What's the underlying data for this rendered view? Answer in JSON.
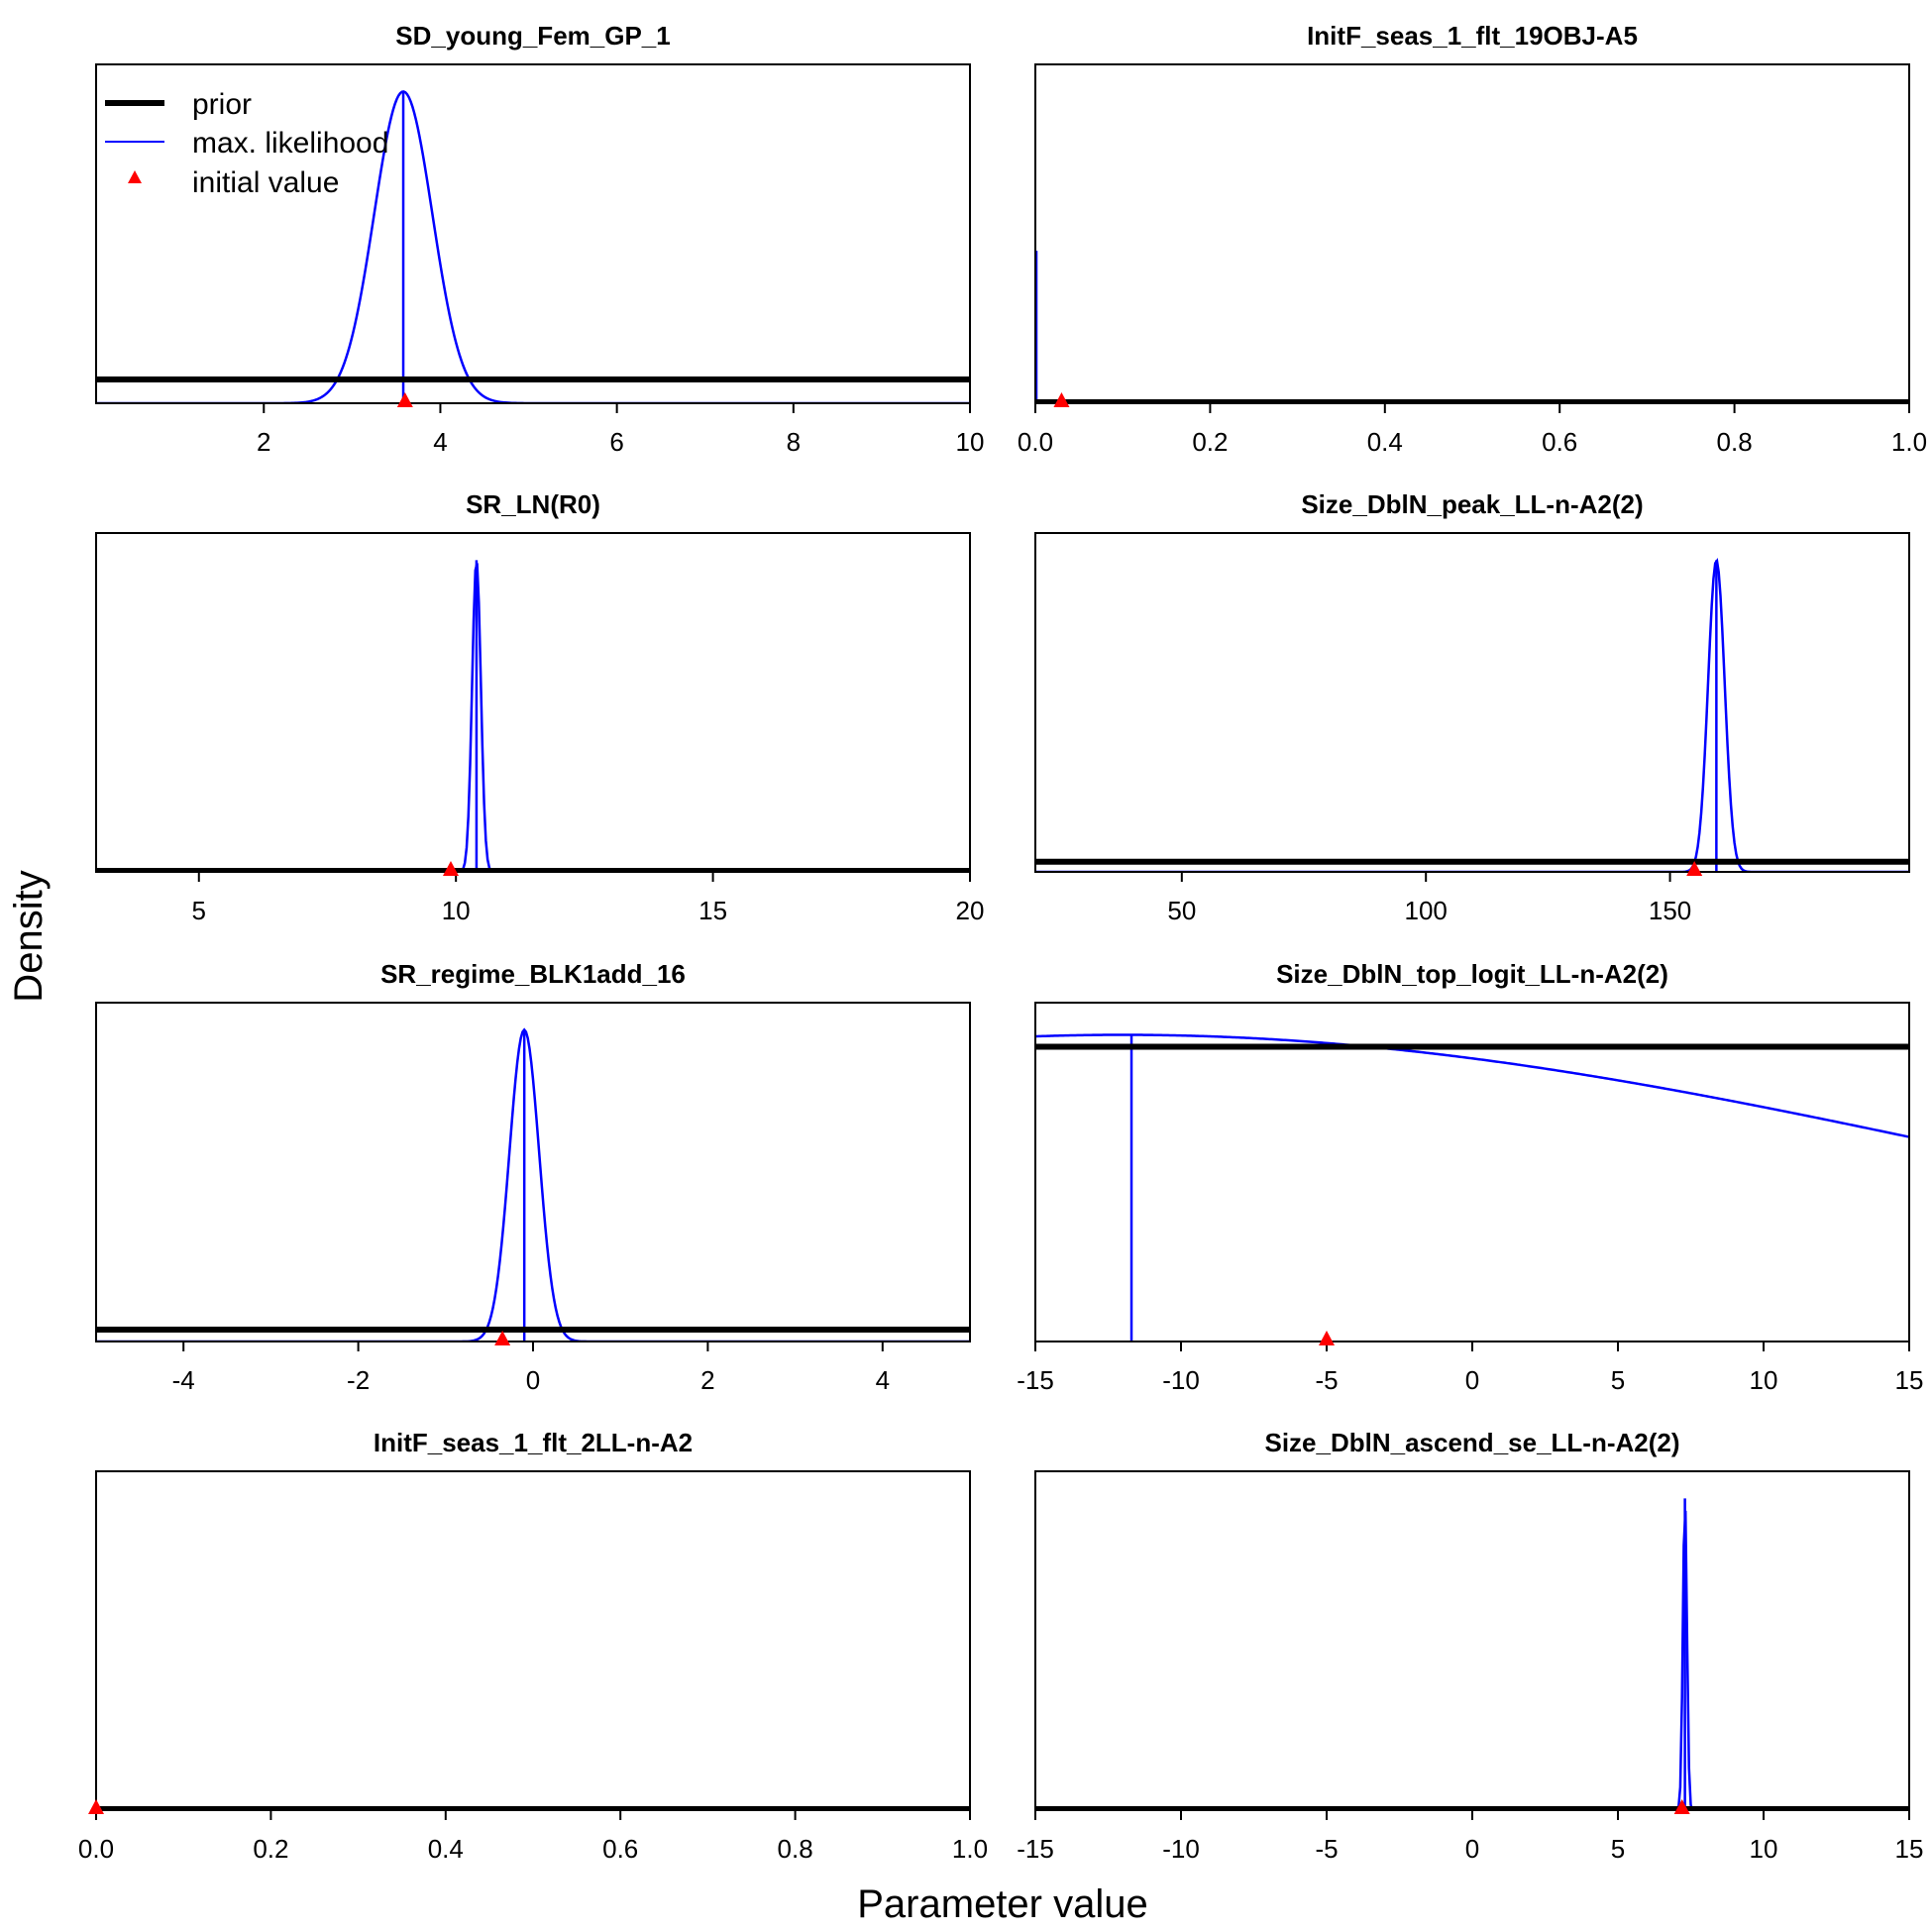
{
  "figure": {
    "ylabel": "Density",
    "xlabel": "Parameter value",
    "colors": {
      "prior": "#000000",
      "mle": "#0000ff",
      "initial": "#ff0000"
    }
  },
  "legend": {
    "placement": "top-left of first panel",
    "items": [
      {
        "label": "prior",
        "style": "thick-black-line"
      },
      {
        "label": "max. likelihood",
        "style": "thin-blue-line"
      },
      {
        "label": "initial value",
        "style": "red-triangle"
      }
    ]
  },
  "chart_data": [
    {
      "type": "line",
      "title": "SD_young_Fem_GP_1",
      "xlim": [
        0.1,
        10
      ],
      "xticks": [
        2,
        4,
        6,
        8,
        10
      ],
      "tick_labels": [
        "2",
        "4",
        "6",
        "8",
        "10"
      ],
      "prior": {
        "kind": "uniform",
        "level": 0.07
      },
      "mle": {
        "kind": "normal",
        "mean": 3.58,
        "sd": 0.33
      },
      "mle_estimate": 3.58,
      "initial_value": 3.6
    },
    {
      "type": "line",
      "title": "InitF_seas_1_flt_19OBJ-A5",
      "xlim": [
        0,
        1
      ],
      "xticks": [
        0,
        0.2,
        0.4,
        0.6,
        0.8,
        1.0
      ],
      "tick_labels": [
        "0.0",
        "0.2",
        "0.4",
        "0.6",
        "0.8",
        "1.0"
      ],
      "prior": {
        "kind": "uniform",
        "level": 0.0
      },
      "mle": {
        "kind": "spike",
        "at": 0.0,
        "height": 0.45
      },
      "mle_estimate": 0.0,
      "initial_value": 0.03
    },
    {
      "type": "line",
      "title": "SR_LN(R0)",
      "xlim": [
        3,
        20
      ],
      "xticks": [
        5,
        10,
        15,
        20
      ],
      "tick_labels": [
        "5",
        "10",
        "15",
        "20"
      ],
      "prior": {
        "kind": "uniform",
        "level": 0.0
      },
      "mle": {
        "kind": "normal",
        "mean": 10.4,
        "sd": 0.085
      },
      "mle_estimate": 10.4,
      "initial_value": 9.9
    },
    {
      "type": "line",
      "title": "Size_DblN_peak_LL-n-A2(2)",
      "xlim": [
        20,
        199
      ],
      "xticks": [
        50,
        100,
        150
      ],
      "tick_labels": [
        "50",
        "100",
        "150"
      ],
      "prior": {
        "kind": "uniform",
        "level": 0.03
      },
      "mle": {
        "kind": "normal",
        "mean": 159.5,
        "sd": 1.7
      },
      "mle_estimate": 159.5,
      "initial_value": 155
    },
    {
      "type": "line",
      "title": "SR_regime_BLK1add_16",
      "xlim": [
        -5,
        5
      ],
      "xticks": [
        -4,
        -2,
        0,
        2,
        4
      ],
      "tick_labels": [
        "-4",
        "-2",
        "0",
        "2",
        "4"
      ],
      "prior": {
        "kind": "uniform",
        "level": 0.035
      },
      "mle": {
        "kind": "normal",
        "mean": -0.1,
        "sd": 0.17
      },
      "mle_estimate": -0.1,
      "initial_value": -0.35
    },
    {
      "type": "line",
      "title": "Size_DblN_top_logit_LL-n-A2(2)",
      "xlim": [
        -15,
        15
      ],
      "xticks": [
        -15,
        -10,
        -5,
        0,
        5,
        10,
        15
      ],
      "tick_labels": [
        "-15",
        "-10",
        "-5",
        "0",
        "5",
        "10",
        "15"
      ],
      "prior": {
        "kind": "uniform",
        "level": 0.87
      },
      "mle": {
        "kind": "normal",
        "mean": -12,
        "sd": 30,
        "peak_level": 0.905
      },
      "mle_estimate": -11.7,
      "initial_value": -5
    },
    {
      "type": "line",
      "title": "InitF_seas_1_flt_2LL-n-A2",
      "xlim": [
        0,
        1
      ],
      "xticks": [
        0,
        0.2,
        0.4,
        0.6,
        0.8,
        1.0
      ],
      "tick_labels": [
        "0.0",
        "0.2",
        "0.4",
        "0.6",
        "0.8",
        "1.0"
      ],
      "prior": {
        "kind": "uniform",
        "level": 0.0
      },
      "mle": {
        "kind": "none"
      },
      "mle_estimate": null,
      "initial_value": 0.0
    },
    {
      "type": "line",
      "title": "Size_DblN_ascend_se_LL-n-A2(2)",
      "xlim": [
        -15,
        15
      ],
      "xticks": [
        -15,
        -10,
        -5,
        0,
        5,
        10,
        15
      ],
      "tick_labels": [
        "-15",
        "-10",
        "-5",
        "0",
        "5",
        "10",
        "15"
      ],
      "prior": {
        "kind": "uniform",
        "level": 0.0
      },
      "mle": {
        "kind": "normal",
        "mean": 7.3,
        "sd": 0.07
      },
      "mle_estimate": 7.3,
      "initial_value": 7.2
    }
  ]
}
